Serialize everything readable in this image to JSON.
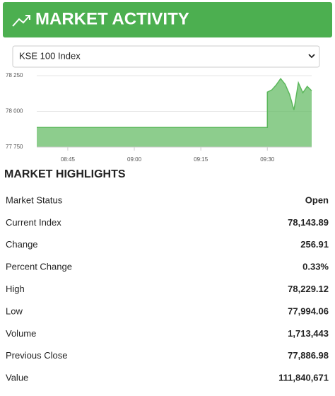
{
  "header": {
    "title": "MARKET ACTIVITY"
  },
  "select": {
    "value": "KSE 100 Index"
  },
  "chart_data": {
    "type": "area",
    "color": "#5cb85c",
    "x": [
      "08:38",
      "09:30",
      "09:30",
      "09:31",
      "09:32",
      "09:33",
      "09:34",
      "09:35",
      "09:36",
      "09:37",
      "09:38",
      "09:39",
      "09:40"
    ],
    "values": [
      77886.98,
      77886.98,
      78135,
      78150,
      78185,
      78229.12,
      78190,
      78120,
      78010,
      78200,
      78130,
      78175,
      78143.89
    ],
    "xlim": [
      "08:38",
      "09:40"
    ],
    "xticks": [
      "08:45",
      "09:00",
      "09:15",
      "09:30"
    ],
    "ylim": [
      77750,
      78250
    ],
    "yticks": [
      {
        "value": 77750,
        "label": "77 750"
      },
      {
        "value": 78000,
        "label": "78 000"
      },
      {
        "value": 78250,
        "label": "78 250"
      }
    ],
    "grid": true
  },
  "highlights": {
    "title": "MARKET HIGHLIGHTS",
    "rows": [
      [
        "Market Status",
        "Open"
      ],
      [
        "Current Index",
        "78,143.89"
      ],
      [
        "Change",
        "256.91"
      ],
      [
        "Percent Change",
        "0.33%"
      ],
      [
        "High",
        "78,229.12"
      ],
      [
        "Low",
        "77,994.06"
      ],
      [
        "Volume",
        "1,713,443"
      ],
      [
        "Previous Close",
        "77,886.98"
      ],
      [
        "Value",
        "111,840,671"
      ]
    ]
  }
}
